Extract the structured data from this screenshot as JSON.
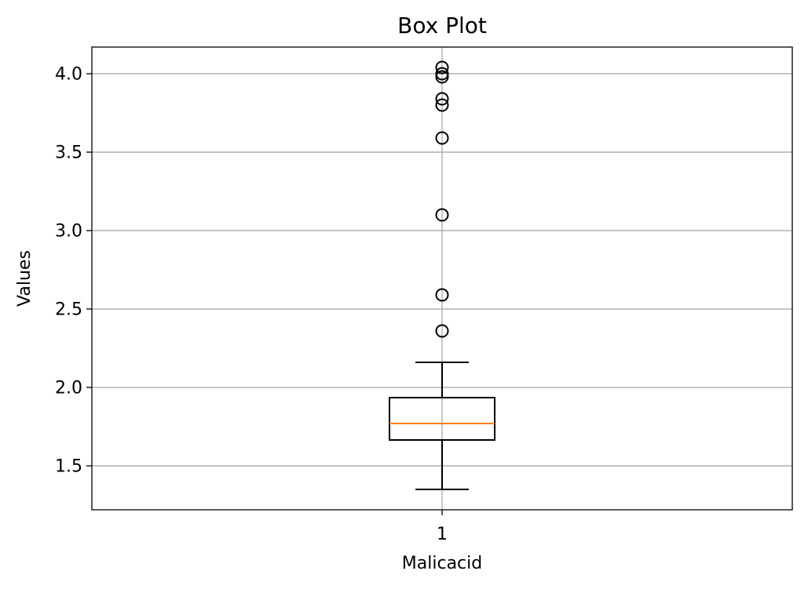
{
  "chart_data": {
    "type": "box",
    "title": "Box Plot",
    "xlabel": "Malicacid",
    "ylabel": "Values",
    "categories": [
      "1"
    ],
    "ylim": [
      1.22,
      4.17
    ],
    "yticks": [
      1.5,
      2.0,
      2.5,
      3.0,
      3.5,
      4.0
    ],
    "ytick_labels": [
      "1.5",
      "2.0",
      "2.5",
      "3.0",
      "3.5",
      "4.0"
    ],
    "grid": true,
    "boxes": [
      {
        "label": "1",
        "whisker_low": 1.35,
        "q1": 1.665,
        "median": 1.77,
        "q3": 1.935,
        "whisker_high": 2.16,
        "outliers": [
          2.36,
          2.59,
          3.1,
          3.59,
          3.8,
          3.84,
          3.98,
          4.0,
          4.04
        ]
      }
    ],
    "colors": {
      "box": "#000000",
      "median": "#ff7f0e",
      "grid": "#b0b0b0",
      "axes": "#000000"
    }
  }
}
